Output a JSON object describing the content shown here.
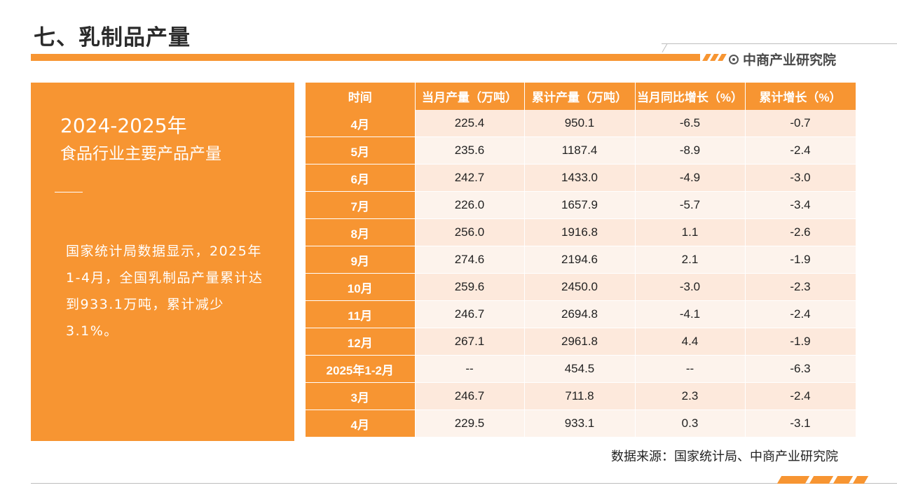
{
  "page": {
    "title": "七、乳制品产量",
    "logo_text": "中商产业研究院",
    "source": "数据来源：国家统计局、中商产业研究院"
  },
  "panel": {
    "year": "2024-2025年",
    "subtitle": "食品行业主要产品产量",
    "body": "国家统计局数据显示，2025年1-4月，全国乳制品产量累计达到933.1万吨，累计减少3.1%。"
  },
  "table": {
    "headers": [
      "时间",
      "当月产量（万吨）",
      "累计产量（万吨）",
      "当月同比增长（%）",
      "累计增长（%）"
    ],
    "rows": [
      [
        "4月",
        "225.4",
        "950.1",
        "-6.5",
        "-0.7"
      ],
      [
        "5月",
        "235.6",
        "1187.4",
        "-8.9",
        "-2.4"
      ],
      [
        "6月",
        "242.7",
        "1433.0",
        "-4.9",
        "-3.0"
      ],
      [
        "7月",
        "226.0",
        "1657.9",
        "-5.7",
        "-3.4"
      ],
      [
        "8月",
        "256.0",
        "1916.8",
        "1.1",
        "-2.6"
      ],
      [
        "9月",
        "274.6",
        "2194.6",
        "2.1",
        "-1.9"
      ],
      [
        "10月",
        "259.6",
        "2450.0",
        "-3.0",
        "-2.3"
      ],
      [
        "11月",
        "246.7",
        "2694.8",
        "-4.1",
        "-2.4"
      ],
      [
        "12月",
        "267.1",
        "2961.8",
        "4.4",
        "-1.9"
      ],
      [
        "2025年1-2月",
        "--",
        "454.5",
        "--",
        "-6.3"
      ],
      [
        "3月",
        "246.7",
        "711.8",
        "2.3",
        "-2.4"
      ],
      [
        "4月",
        "229.5",
        "933.1",
        "0.3",
        "-3.1"
      ]
    ]
  },
  "colors": {
    "accent": "#f79532",
    "row_light": "#fdf3ec",
    "row_mid": "#fde9dc"
  }
}
